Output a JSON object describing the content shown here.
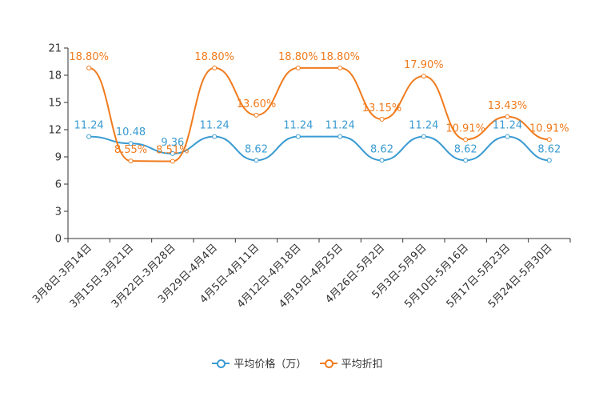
{
  "chart_data": {
    "type": "line",
    "title": "",
    "xlabel": "",
    "ylabel": "",
    "ylim": [
      0,
      21
    ],
    "yticks": [
      0,
      3,
      6,
      9,
      12,
      15,
      18,
      21
    ],
    "grid": false,
    "legend_position": "bottom-center",
    "categories": [
      "3月8日-3月14日",
      "3月15日-3月21日",
      "3月22日-3月28日",
      "3月29日-4月4日",
      "4月5日-4月11日",
      "4月12日-4月18日",
      "4月19日-4月25日",
      "4月26日-5月2日",
      "5月3日-5月9日",
      "5月10日-5月16日",
      "5月17日-5月23日",
      "5月24日-5月30日"
    ],
    "series": [
      {
        "name": "平均价格（万）",
        "color": "#3a9bd1",
        "values": [
          11.24,
          10.48,
          9.36,
          11.24,
          8.62,
          11.24,
          11.24,
          8.62,
          11.24,
          8.62,
          11.24,
          8.62
        ],
        "labels": [
          "11.24",
          "10.48",
          "9.36",
          "11.24",
          "8.62",
          "11.24",
          "11.24",
          "8.62",
          "11.24",
          "8.62",
          "11.24",
          "8.62"
        ]
      },
      {
        "name": "平均折扣",
        "color": "#f07b1d",
        "values": [
          18.8,
          8.55,
          8.51,
          18.8,
          13.6,
          18.8,
          18.8,
          13.15,
          17.9,
          10.91,
          13.43,
          10.91
        ],
        "labels": [
          "18.80%",
          "8.55%",
          "8.51%",
          "18.80%",
          "13.60%",
          "18.80%",
          "18.80%",
          "13.15%",
          "17.90%",
          "10.91%",
          "13.43%",
          "10.91%"
        ]
      }
    ]
  }
}
